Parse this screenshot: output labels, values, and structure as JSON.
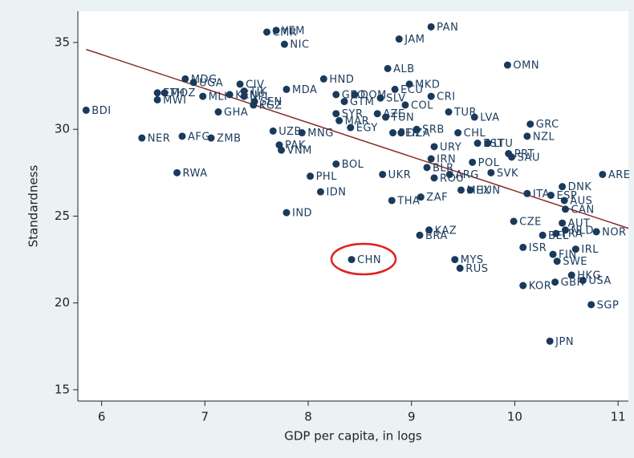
{
  "chart_data": {
    "type": "scatter",
    "x_label": "GDP per capita, in logs",
    "y_label": "Standardness",
    "xlim": [
      5.77,
      11.1
    ],
    "ylim": [
      14.35,
      36.8
    ],
    "xticks": [
      6,
      7,
      8,
      9,
      10,
      11
    ],
    "yticks": [
      15,
      20,
      25,
      30,
      35
    ],
    "color": "#1a3a5c",
    "trend_color": "#8b2a2a",
    "labels": [
      "BDI",
      "YEM",
      "CMR",
      "NIC",
      "PAN",
      "JAM",
      "OMN",
      "ALB",
      "MDG",
      "UGA",
      "HND",
      "MKD",
      "CIV",
      "MDA",
      "ECU",
      "CRI",
      "ETH",
      "MOZ",
      "MWI",
      "MLI",
      "TJK",
      "KEN",
      "NPL",
      "GHA",
      "KGZ",
      "SEN",
      "GEO",
      "DOM",
      "SLV",
      "GTM",
      "COL",
      "TUR",
      "LVA",
      "SYR",
      "AZE",
      "TUN",
      "MAR",
      "EGY",
      "MNG",
      "UZB",
      "GRC",
      "SRB",
      "CHL",
      "NZL",
      "PER",
      "DZA",
      "LTU",
      "EST",
      "URY",
      "PRT",
      "SAU",
      "IRN",
      "POL",
      "NER",
      "AFG",
      "ZMB",
      "PAK",
      "VNM",
      "BOL",
      "RWA",
      "BLR",
      "ARE",
      "PHL",
      "UKR",
      "SVK",
      "ARG",
      "ROU",
      "MEX",
      "DNK",
      "HUN",
      "IDN",
      "ITA",
      "ESP",
      "AUS",
      "ZAF",
      "THA",
      "CAN",
      "IND",
      "CZE",
      "AUT",
      "KAZ",
      "BRA",
      "NOR",
      "NLD",
      "FRA",
      "BEL",
      "ISR",
      "IRL",
      "FIN",
      "CHN",
      "MYS",
      "RUS",
      "SWE",
      "HKG",
      "USA",
      "GBR",
      "KOR",
      "SGP",
      "JPN"
    ],
    "x": [
      5.85,
      7.69,
      7.6,
      7.77,
      9.19,
      8.88,
      9.93,
      8.77,
      6.81,
      6.89,
      8.15,
      8.98,
      7.34,
      7.79,
      8.84,
      9.19,
      6.54,
      6.61,
      6.54,
      6.98,
      7.38,
      7.24,
      7.38,
      7.13,
      7.47,
      7.48,
      8.27,
      8.45,
      8.7,
      8.35,
      8.94,
      9.36,
      9.61,
      8.27,
      8.67,
      8.75,
      8.3,
      8.41,
      7.94,
      7.66,
      10.15,
      9.05,
      9.45,
      10.12,
      8.82,
      8.9,
      9.74,
      9.64,
      9.22,
      9.94,
      9.97,
      9.19,
      9.59,
      6.39,
      6.78,
      7.06,
      7.72,
      7.74,
      8.27,
      6.73,
      9.15,
      10.85,
      8.02,
      8.72,
      9.77,
      9.37,
      9.22,
      9.48,
      10.46,
      9.57,
      8.12,
      10.12,
      10.35,
      10.48,
      9.09,
      8.81,
      10.49,
      7.79,
      9.99,
      10.46,
      9.17,
      9.08,
      10.79,
      10.49,
      10.4,
      10.27,
      10.08,
      10.59,
      10.37,
      8.42,
      9.42,
      9.47,
      10.41,
      10.55,
      10.66,
      10.39,
      10.08,
      10.74,
      10.34
    ],
    "values": [
      31.1,
      35.7,
      35.6,
      34.9,
      35.9,
      35.2,
      33.7,
      33.5,
      32.9,
      32.7,
      32.9,
      32.6,
      32.6,
      32.3,
      32.3,
      31.9,
      32.1,
      32.1,
      31.7,
      31.9,
      32.2,
      32.0,
      31.9,
      31.0,
      31.4,
      31.6,
      32.0,
      32.0,
      31.8,
      31.6,
      31.4,
      31.0,
      30.7,
      30.9,
      30.9,
      30.7,
      30.5,
      30.1,
      29.8,
      29.9,
      30.3,
      30.0,
      29.8,
      29.6,
      29.8,
      29.8,
      29.2,
      29.2,
      29.0,
      28.6,
      28.4,
      28.3,
      28.1,
      29.5,
      29.6,
      29.5,
      29.1,
      28.8,
      28.0,
      27.5,
      27.8,
      27.4,
      27.3,
      27.4,
      27.5,
      27.4,
      27.2,
      26.5,
      26.7,
      26.5,
      26.4,
      26.3,
      26.2,
      25.9,
      26.1,
      25.9,
      25.4,
      25.2,
      24.7,
      24.6,
      24.2,
      23.9,
      24.1,
      24.2,
      24.0,
      23.9,
      23.2,
      23.1,
      22.8,
      22.5,
      22.5,
      22.0,
      22.4,
      21.6,
      21.3,
      21.2,
      21.0,
      19.9,
      17.8
    ],
    "trend_line": {
      "x": [
        5.85,
        11.1
      ],
      "y": [
        34.6,
        24.3
      ]
    }
  }
}
